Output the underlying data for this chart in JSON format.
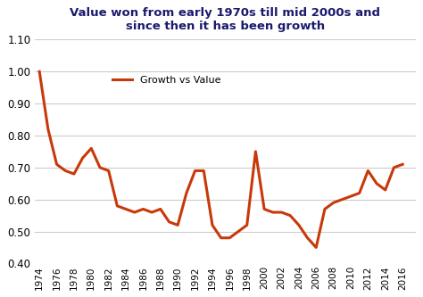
{
  "title": "Value won from early 1970s till mid 2000s and\nsince then it has been growth",
  "legend_label": "Growth vs Value",
  "line_color": "#C8390A",
  "background_color": "#ffffff",
  "grid_color": "#cccccc",
  "title_color": "#1a1a6e",
  "ylim": [
    0.4,
    1.1
  ],
  "yticks": [
    0.4,
    0.5,
    0.6,
    0.7,
    0.8,
    0.9,
    1.0,
    1.1
  ],
  "years": [
    1974,
    1975,
    1976,
    1977,
    1978,
    1979,
    1980,
    1981,
    1982,
    1983,
    1984,
    1985,
    1986,
    1987,
    1988,
    1989,
    1990,
    1991,
    1992,
    1993,
    1994,
    1995,
    1996,
    1997,
    1998,
    1999,
    2000,
    2001,
    2002,
    2003,
    2004,
    2005,
    2006,
    2007,
    2008,
    2009,
    2010,
    2011,
    2012,
    2013,
    2014,
    2015,
    2016
  ],
  "values": [
    1.0,
    0.82,
    0.71,
    0.69,
    0.68,
    0.73,
    0.76,
    0.7,
    0.69,
    0.58,
    0.57,
    0.56,
    0.57,
    0.56,
    0.57,
    0.53,
    0.52,
    0.62,
    0.69,
    0.69,
    0.52,
    0.48,
    0.48,
    0.5,
    0.52,
    0.75,
    0.57,
    0.56,
    0.56,
    0.55,
    0.52,
    0.48,
    0.45,
    0.57,
    0.59,
    0.6,
    0.61,
    0.62,
    0.69,
    0.65,
    0.63,
    0.7,
    0.71
  ],
  "xtick_years": [
    1974,
    1976,
    1978,
    1980,
    1982,
    1984,
    1986,
    1988,
    1990,
    1992,
    1994,
    1996,
    1998,
    2000,
    2002,
    2004,
    2006,
    2008,
    2010,
    2012,
    2014,
    2016
  ]
}
